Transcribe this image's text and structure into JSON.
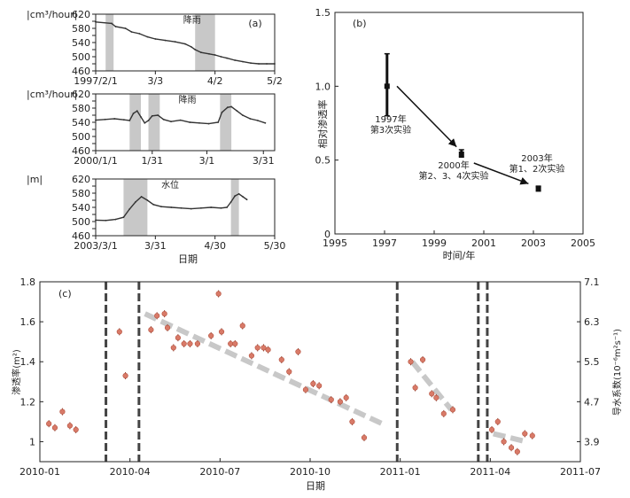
{
  "chart_data": [
    {
      "id": "a",
      "type": "line",
      "panel_label": "(a)",
      "subpanels": [
        {
          "ylabel": "|cm³/hour|",
          "yticks": [
            460,
            480,
            500,
            520,
            540,
            560,
            580,
            600,
            620
          ],
          "ytick_labels": [
            "460",
            "",
            "500",
            "",
            "540",
            "",
            "580",
            "",
            "620"
          ],
          "ylim": [
            460,
            620
          ],
          "xticks": [
            0,
            30,
            60,
            90
          ],
          "xtick_labels": [
            "1997/2/1",
            "3/3",
            "4/2",
            "5/2"
          ],
          "xlim": [
            0,
            90
          ],
          "annotation": "降雨",
          "shaded": [
            [
              5,
              9
            ],
            [
              50,
              60
            ]
          ],
          "series": {
            "x": [
              0,
              8,
              10,
              15,
              18,
              22,
              26,
              30,
              35,
              40,
              45,
              48,
              50,
              53,
              57,
              60,
              63,
              66,
              70,
              74,
              78,
              82,
              86,
              90
            ],
            "y": [
              598,
              594,
              585,
              580,
              570,
              565,
              556,
              550,
              546,
              542,
              536,
              528,
              520,
              512,
              508,
              505,
              500,
              496,
              490,
              486,
              482,
              480,
              480,
              480
            ]
          }
        },
        {
          "ylabel": "|cm³/hour|",
          "yticks": [
            460,
            480,
            500,
            520,
            540,
            560,
            580,
            600,
            620
          ],
          "ytick_labels": [
            "460",
            "",
            "500",
            "",
            "540",
            "",
            "580",
            "",
            "620"
          ],
          "ylim": [
            460,
            620
          ],
          "xticks": [
            0,
            30,
            59,
            89
          ],
          "xtick_labels": [
            "2000/1/1",
            "1/31",
            "3/1",
            "3/31"
          ],
          "xlim": [
            0,
            95
          ],
          "annotation": "降雨",
          "shaded": [
            [
              18,
              24
            ],
            [
              28,
              34
            ],
            [
              66,
              72
            ]
          ],
          "series": {
            "x": [
              0,
              5,
              10,
              15,
              18,
              20,
              22,
              24,
              26,
              28,
              30,
              33,
              36,
              40,
              45,
              50,
              55,
              60,
              65,
              67,
              70,
              72,
              75,
              78,
              82,
              86,
              90
            ],
            "y": [
              546,
              548,
              550,
              547,
              545,
              565,
              572,
              555,
              538,
              545,
              558,
              560,
              548,
              542,
              546,
              540,
              538,
              536,
              540,
              568,
              582,
              584,
              572,
              560,
              550,
              545,
              538
            ]
          }
        },
        {
          "ylabel": "|m|",
          "yticks": [
            460,
            480,
            500,
            520,
            540,
            560,
            580,
            600,
            620
          ],
          "ytick_labels": [
            "460",
            "",
            "500",
            "",
            "540",
            "",
            "580",
            "",
            "620"
          ],
          "ylim": [
            460,
            620
          ],
          "xticks": [
            0,
            30,
            60,
            90
          ],
          "xtick_labels": [
            "2003/3/1",
            "3/31",
            "4/30",
            "5/30"
          ],
          "xlim": [
            0,
            90
          ],
          "annotation": "水位",
          "shaded": [
            [
              14,
              26
            ],
            [
              68,
              72
            ]
          ],
          "series": {
            "x": [
              0,
              5,
              10,
              14,
              17,
              20,
              23,
              26,
              29,
              33,
              38,
              43,
              48,
              53,
              58,
              63,
              66,
              68,
              70,
              72,
              74,
              76
            ],
            "y": [
              504,
              503,
              506,
              512,
              535,
              555,
              570,
              560,
              548,
              542,
              540,
              538,
              536,
              538,
              540,
              538,
              540,
              555,
              572,
              578,
              570,
              562
            ]
          }
        }
      ],
      "xlabel": "日期"
    },
    {
      "id": "b",
      "type": "scatter",
      "panel_label": "(b)",
      "ylabel": "相对渗透率",
      "xlabel": "时间/年",
      "xlim": [
        1995,
        2005
      ],
      "ylim": [
        0,
        1.5
      ],
      "xticks": [
        1995,
        1997,
        1999,
        2001,
        2003,
        2005
      ],
      "xtick_labels": [
        "1995",
        "1997",
        "1999",
        "2001",
        "2003",
        "2005"
      ],
      "yticks": [
        0,
        0.5,
        1.0,
        1.5
      ],
      "ytick_labels": [
        "0",
        "0.5",
        "1.0",
        "1.5"
      ],
      "points": [
        {
          "x": 1997.1,
          "y": 1.0,
          "ylow": 0.8,
          "yhigh": 1.22
        },
        {
          "x": 2000.1,
          "y": 0.54,
          "ylow": 0.52,
          "yhigh": 0.57
        },
        {
          "x": 2003.2,
          "y": 0.31,
          "ylow": 0.29,
          "yhigh": 0.32
        }
      ],
      "arrows": [
        {
          "x1": 1997.5,
          "y1": 1.0,
          "x2": 1999.9,
          "y2": 0.59
        },
        {
          "x1": 2000.6,
          "y1": 0.48,
          "x2": 2002.8,
          "y2": 0.34
        }
      ],
      "annotations": [
        {
          "lines": [
            "1997年",
            "第3次实验"
          ]
        },
        {
          "lines": [
            "2000年",
            "第2、3、4次实验"
          ]
        },
        {
          "lines": [
            "2003年",
            "第1、2次实验"
          ]
        }
      ]
    },
    {
      "id": "c",
      "type": "scatter",
      "panel_label": "(c)",
      "ylabel": "渗透率(m²)",
      "y2label": "导水系数(10⁻⁶m²s⁻¹)",
      "xlabel": "日期",
      "xlim": [
        0,
        18
      ],
      "ylim": [
        0.9,
        1.8
      ],
      "xticks": [
        0,
        3,
        6,
        9,
        12,
        15,
        18
      ],
      "xtick_labels": [
        "2010-01",
        "2010-04",
        "2010-07",
        "2010-10",
        "2011-01",
        "2011-04",
        "2011-07"
      ],
      "yticks": [
        1.0,
        1.2,
        1.4,
        1.6,
        1.8
      ],
      "ytick_labels": [
        "1",
        "1.2",
        "1.4",
        "1.6",
        "1.8"
      ],
      "y2ticks": [
        1.0,
        1.2,
        1.4,
        1.6,
        1.8
      ],
      "y2tick_labels": [
        "3.9",
        "4.7",
        "5.5",
        "6.3",
        "7.1"
      ],
      "vlines": [
        2.2,
        3.3,
        11.9,
        14.6,
        14.9
      ],
      "points": {
        "x": [
          0.3,
          0.5,
          0.75,
          1.0,
          1.2,
          2.65,
          2.85,
          3.7,
          3.9,
          4.15,
          4.25,
          4.45,
          4.6,
          4.8,
          5.0,
          5.25,
          5.7,
          5.95,
          6.05,
          6.35,
          6.5,
          6.75,
          7.05,
          7.25,
          7.45,
          7.6,
          8.05,
          8.3,
          8.6,
          8.85,
          9.1,
          9.3,
          9.7,
          10.0,
          10.2,
          10.4,
          10.8,
          12.35,
          12.5,
          12.75,
          13.05,
          13.2,
          13.45,
          13.75,
          15.05,
          15.25,
          15.45,
          15.7,
          15.9,
          16.15,
          16.4
        ],
        "y": [
          1.09,
          1.07,
          1.15,
          1.08,
          1.06,
          1.55,
          1.33,
          1.56,
          1.63,
          1.64,
          1.57,
          1.47,
          1.52,
          1.49,
          1.49,
          1.49,
          1.53,
          1.74,
          1.55,
          1.49,
          1.49,
          1.58,
          1.43,
          1.47,
          1.47,
          1.46,
          1.41,
          1.35,
          1.45,
          1.26,
          1.29,
          1.28,
          1.21,
          1.2,
          1.22,
          1.1,
          1.02,
          1.4,
          1.27,
          1.41,
          1.24,
          1.22,
          1.14,
          1.16,
          1.06,
          1.1,
          1.0,
          0.97,
          0.95,
          1.04,
          1.03
        ]
      },
      "trends": [
        {
          "x": [
            3.5,
            11.4
          ],
          "y": [
            1.64,
            1.09
          ]
        },
        {
          "x": [
            12.4,
            13.7
          ],
          "y": [
            1.4,
            1.16
          ]
        },
        {
          "x": [
            15.1,
            16.2
          ],
          "y": [
            1.04,
            1.0
          ]
        }
      ]
    }
  ]
}
